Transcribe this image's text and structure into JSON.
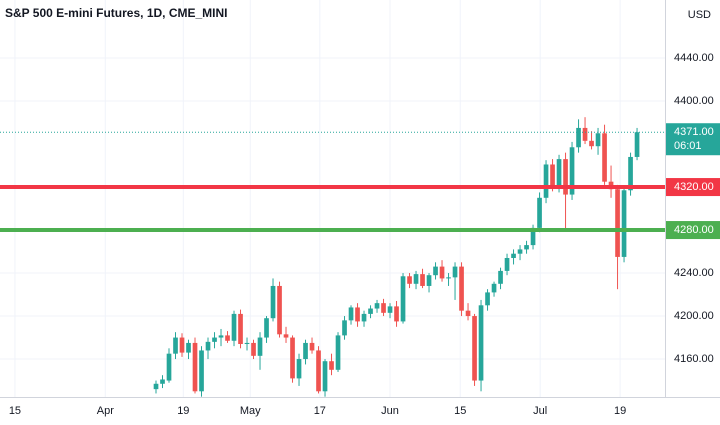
{
  "chart_data": {
    "type": "candlestick",
    "title": "S&P 500 E-mini Futures, 1D, CME_MINI",
    "currency": "USD",
    "up_color": "#26a69a",
    "down_color": "#ef5350",
    "x": [
      24,
      25,
      26,
      27,
      28,
      29,
      30,
      31,
      32,
      33,
      34,
      35,
      36,
      37,
      38,
      39,
      40,
      41,
      42,
      43,
      44,
      45,
      46,
      47,
      48,
      49,
      50,
      51,
      52,
      53,
      54,
      55,
      56,
      57,
      58,
      59,
      60,
      61,
      62,
      63,
      64,
      65,
      66,
      67,
      68,
      69,
      70,
      71,
      72,
      73,
      74,
      75,
      76,
      77,
      78,
      79,
      80,
      81,
      82,
      83,
      84,
      85,
      86,
      87,
      88,
      89,
      90,
      91,
      92,
      93,
      94,
      95,
      96,
      97,
      98
    ],
    "open": [
      4132,
      4137,
      4140,
      4165,
      4180,
      4166,
      4175,
      4130,
      4168,
      4176,
      4180,
      4182,
      4177,
      4202,
      4174,
      4175,
      4163,
      4180,
      4198,
      4228,
      4183,
      4180,
      4142,
      4160,
      4175,
      4168,
      4130,
      4158,
      4150,
      4182,
      4196,
      4208,
      4195,
      4202,
      4207,
      4212,
      4203,
      4209,
      4195,
      4237,
      4230,
      4239,
      4228,
      4238,
      4246,
      4235,
      4236,
      4246,
      4205,
      4200,
      4140,
      4210,
      4222,
      4230,
      4242,
      4254,
      4258,
      4262,
      4266,
      4282,
      4310,
      4341,
      4320,
      4346,
      4313,
      4357,
      4375,
      4363,
      4358,
      4370,
      4325,
      4318,
      4255,
      4317,
      4348
    ],
    "high": [
      4140,
      4145,
      4170,
      4185,
      4184,
      4178,
      4180,
      4172,
      4180,
      4185,
      4188,
      4186,
      4205,
      4206,
      4180,
      4178,
      4185,
      4200,
      4235,
      4232,
      4190,
      4182,
      4165,
      4178,
      4180,
      4172,
      4160,
      4165,
      4185,
      4200,
      4210,
      4212,
      4205,
      4210,
      4215,
      4216,
      4212,
      4214,
      4240,
      4240,
      4242,
      4244,
      4240,
      4250,
      4252,
      4240,
      4250,
      4250,
      4212,
      4202,
      4215,
      4225,
      4232,
      4245,
      4258,
      4262,
      4266,
      4270,
      4285,
      4315,
      4345,
      4346,
      4350,
      4352,
      4362,
      4383,
      4385,
      4372,
      4375,
      4378,
      4340,
      4322,
      4320,
      4352,
      4375
    ],
    "low": [
      4128,
      4133,
      4138,
      4160,
      4162,
      4160,
      4128,
      4125,
      4160,
      4170,
      4172,
      4175,
      4172,
      4170,
      4168,
      4160,
      4150,
      4175,
      4195,
      4180,
      4175,
      4138,
      4135,
      4155,
      4165,
      4128,
      4125,
      4145,
      4148,
      4178,
      4192,
      4190,
      4190,
      4198,
      4203,
      4200,
      4198,
      4190,
      4193,
      4226,
      4225,
      4226,
      4222,
      4234,
      4232,
      4228,
      4215,
      4200,
      4196,
      4135,
      4130,
      4205,
      4218,
      4225,
      4238,
      4248,
      4252,
      4258,
      4262,
      4278,
      4305,
      4316,
      4315,
      4280,
      4308,
      4352,
      4360,
      4355,
      4350,
      4322,
      4310,
      4225,
      4250,
      4312,
      4345
    ],
    "close": [
      4137,
      4141,
      4165,
      4180,
      4166,
      4175,
      4130,
      4168,
      4176,
      4180,
      4182,
      4177,
      4202,
      4174,
      4175,
      4163,
      4180,
      4198,
      4228,
      4183,
      4180,
      4142,
      4160,
      4175,
      4168,
      4130,
      4158,
      4150,
      4182,
      4196,
      4208,
      4195,
      4202,
      4207,
      4212,
      4203,
      4209,
      4195,
      4237,
      4230,
      4239,
      4228,
      4238,
      4246,
      4235,
      4236,
      4246,
      4205,
      4200,
      4140,
      4210,
      4222,
      4230,
      4242,
      4254,
      4258,
      4262,
      4266,
      4282,
      4310,
      4341,
      4320,
      4346,
      4313,
      4357,
      4375,
      4363,
      4358,
      4370,
      4325,
      4318,
      4255,
      4317,
      4348,
      4371
    ],
    "xlim": [
      0,
      102.3
    ],
    "xticks": [
      {
        "value": 2.3,
        "label": "15"
      },
      {
        "value": 16.2,
        "label": "Apr"
      },
      {
        "value": 28.2,
        "label": "19"
      },
      {
        "value": 38.5,
        "label": "May"
      },
      {
        "value": 49.2,
        "label": "17"
      },
      {
        "value": 60,
        "label": "Jun"
      },
      {
        "value": 70.8,
        "label": "15"
      },
      {
        "value": 83.1,
        "label": "Jul"
      },
      {
        "value": 95.4,
        "label": "19"
      }
    ],
    "ylim": [
      4124.7,
      4494
    ],
    "yticks": [
      {
        "value": 4160,
        "label": "4160.00"
      },
      {
        "value": 4200,
        "label": "4200.00"
      },
      {
        "value": 4240,
        "label": "4240.00"
      },
      {
        "value": 4400,
        "label": "4400.00"
      },
      {
        "value": 4440,
        "label": "4440.00"
      }
    ],
    "grid": true,
    "levels": [
      {
        "value": 4320,
        "label": "4320.00",
        "color": "#f23645"
      },
      {
        "value": 4280,
        "label": "4280.00",
        "color": "#4caf50"
      }
    ],
    "last_price": {
      "value": 4371,
      "label": "4371.00",
      "countdown": "06:01",
      "color": "#26a69a"
    }
  }
}
